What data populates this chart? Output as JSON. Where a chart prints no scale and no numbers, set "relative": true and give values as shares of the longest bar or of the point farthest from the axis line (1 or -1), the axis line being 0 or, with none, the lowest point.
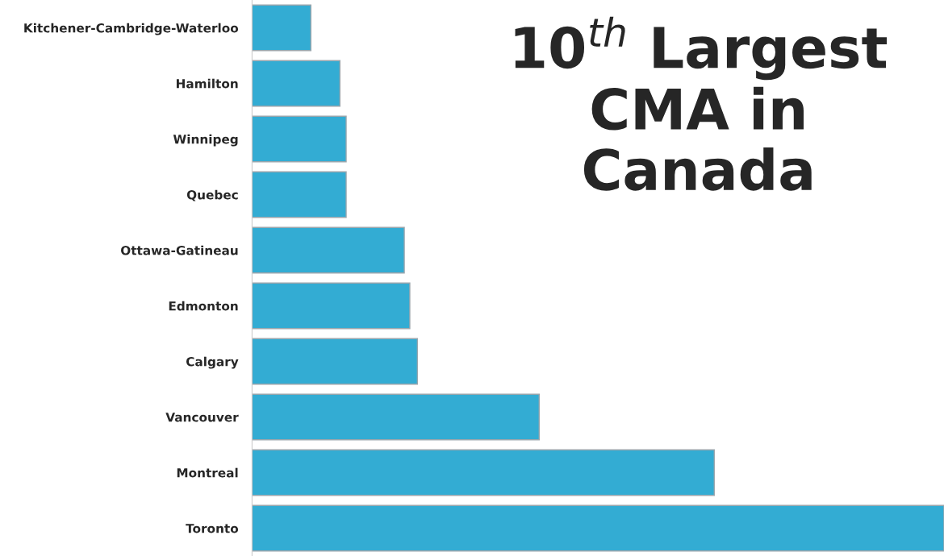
{
  "chart_data": {
    "type": "bar",
    "orientation": "horizontal",
    "relative": true,
    "title": "10$^{th}$ Largest\nCMA in\nCanada",
    "categories": [
      "Kitchener-Cambridge-Waterloo",
      "Hamilton",
      "Winnipeg",
      "Quebec",
      "Ottawa-Gatineau",
      "Edmonton",
      "Calgary",
      "Vancouver",
      "Montreal",
      "Toronto"
    ],
    "values": [
      0.085,
      0.127,
      0.136,
      0.136,
      0.22,
      0.228,
      0.239,
      0.415,
      0.668,
      1
    ],
    "color": "#33acd3",
    "grid": false,
    "legend": false
  }
}
